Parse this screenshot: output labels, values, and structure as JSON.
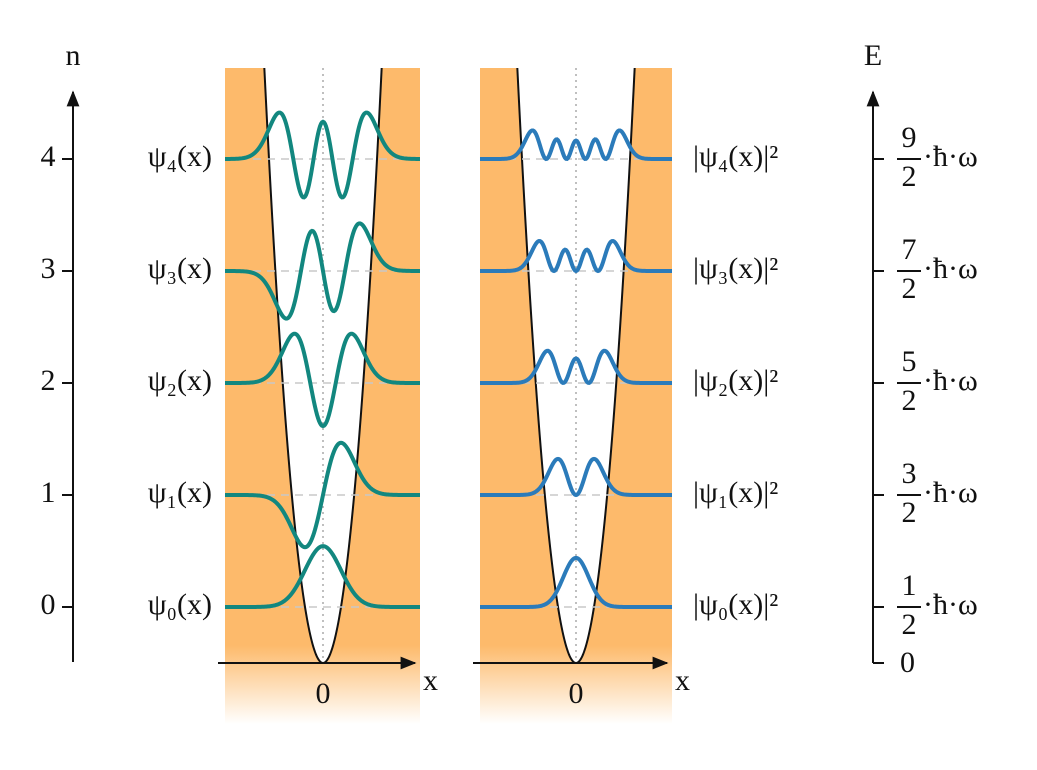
{
  "left_axis": {
    "label": "n",
    "ticks": [
      0,
      1,
      2,
      3,
      4
    ]
  },
  "wavefunctions": {
    "labels": [
      "ψ₀(x)",
      "ψ₁(x)",
      "ψ₂(x)",
      "ψ₃(x)",
      "ψ₄(x)"
    ],
    "x_label": "x",
    "origin_label": "0",
    "color": "#12877f"
  },
  "probabilities": {
    "labels": [
      "|ψ₀(x)|²",
      "|ψ₁(x)|²",
      "|ψ₂(x)|²",
      "|ψ₃(x)|²",
      "|ψ₄(x)|²"
    ],
    "x_label": "x",
    "origin_label": "0",
    "color": "#2b7bba"
  },
  "right_axis": {
    "label": "E",
    "zero_label": "0",
    "levels": [
      {
        "numerator": "1",
        "denominator": "2",
        "suffix": "·ħ·ω"
      },
      {
        "numerator": "3",
        "denominator": "2",
        "suffix": "·ħ·ω"
      },
      {
        "numerator": "5",
        "denominator": "2",
        "suffix": "·ħ·ω"
      },
      {
        "numerator": "7",
        "denominator": "2",
        "suffix": "·ħ·ω"
      },
      {
        "numerator": "9",
        "denominator": "2",
        "suffix": "·ħ·ω"
      }
    ]
  }
}
